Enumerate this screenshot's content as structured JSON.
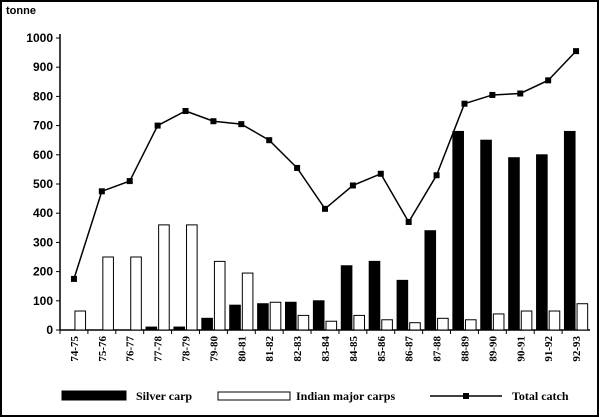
{
  "chart_data": {
    "type": "bar",
    "title": "",
    "xlabel": "",
    "ylabel": "tonne",
    "ylim": [
      0,
      1000
    ],
    "yticks": [
      0,
      100,
      200,
      300,
      400,
      500,
      600,
      700,
      800,
      900,
      1000
    ],
    "grid": false,
    "legend_position": "bottom",
    "categories": [
      "74-75",
      "75-76",
      "76-77",
      "77-78",
      "78-79",
      "79-80",
      "80-81",
      "81-82",
      "82-83",
      "83-84",
      "84-85",
      "85-86",
      "86-87",
      "87-88",
      "88-89",
      "89-90",
      "90-91",
      "91-92",
      "92-93"
    ],
    "series": [
      {
        "name": "Silver carp",
        "type": "bar",
        "color": "#000000",
        "values": [
          0,
          0,
          0,
          10,
          10,
          40,
          85,
          90,
          95,
          100,
          220,
          235,
          170,
          340,
          680,
          650,
          590,
          600,
          680
        ]
      },
      {
        "name": "Indian major carps",
        "type": "bar",
        "color": "#ffffff",
        "values": [
          65,
          250,
          250,
          360,
          360,
          235,
          195,
          95,
          50,
          30,
          50,
          35,
          25,
          40,
          35,
          55,
          65,
          65,
          90
        ]
      },
      {
        "name": "Total catch",
        "type": "line",
        "color": "#000000",
        "values": [
          175,
          475,
          510,
          700,
          750,
          715,
          705,
          650,
          555,
          415,
          495,
          535,
          370,
          530,
          775,
          805,
          810,
          855,
          955
        ]
      }
    ]
  }
}
